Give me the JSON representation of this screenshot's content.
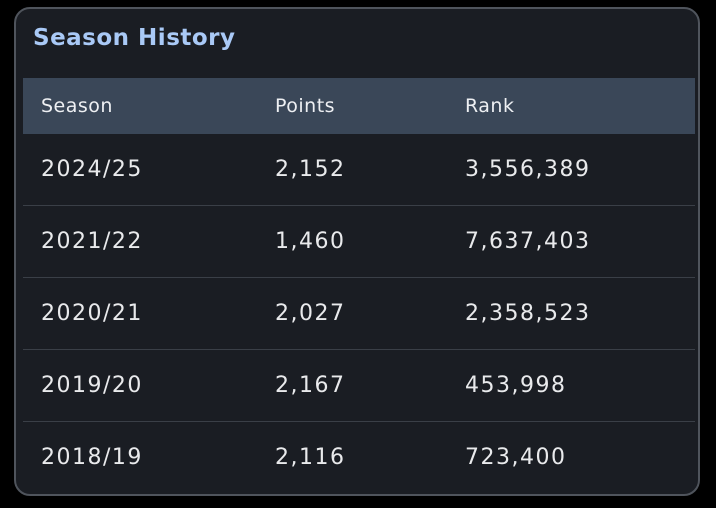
{
  "header": {
    "title": "Season History"
  },
  "table": {
    "columns": [
      "Season",
      "Points",
      "Rank"
    ],
    "rows": [
      [
        "2024/25",
        "2,152",
        "3,556,389"
      ],
      [
        "2021/22",
        "1,460",
        "7,637,403"
      ],
      [
        "2020/21",
        "2,027",
        "2,358,523"
      ],
      [
        "2019/20",
        "2,167",
        "453,998"
      ],
      [
        "2018/19",
        "2,116",
        "723,400"
      ]
    ]
  }
}
